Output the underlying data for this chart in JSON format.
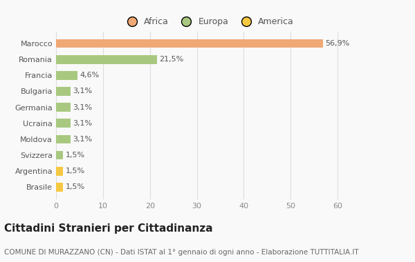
{
  "categories": [
    "Brasile",
    "Argentina",
    "Svizzera",
    "Moldova",
    "Ucraina",
    "Germania",
    "Bulgaria",
    "Francia",
    "Romania",
    "Marocco"
  ],
  "values": [
    1.5,
    1.5,
    1.5,
    3.1,
    3.1,
    3.1,
    3.1,
    4.6,
    21.5,
    56.9
  ],
  "labels": [
    "1,5%",
    "1,5%",
    "1,5%",
    "3,1%",
    "3,1%",
    "3,1%",
    "3,1%",
    "4,6%",
    "21,5%",
    "56,9%"
  ],
  "colors": [
    "#f5c842",
    "#f5c842",
    "#a8c880",
    "#a8c880",
    "#a8c880",
    "#a8c880",
    "#a8c880",
    "#a8c880",
    "#a8c880",
    "#f0a875"
  ],
  "legend_labels": [
    "Africa",
    "Europa",
    "America"
  ],
  "legend_colors": [
    "#f0a875",
    "#a8c880",
    "#f5c842"
  ],
  "title": "Cittadini Stranieri per Cittadinanza",
  "subtitle": "COMUNE DI MURAZZANO (CN) - Dati ISTAT al 1° gennaio di ogni anno - Elaborazione TUTTITALIA.IT",
  "xlim": [
    0,
    65
  ],
  "xticks": [
    0,
    10,
    20,
    30,
    40,
    50,
    60
  ],
  "bg_color": "#f9f9f9",
  "bar_height": 0.55,
  "title_fontsize": 11,
  "subtitle_fontsize": 7.5,
  "label_fontsize": 8,
  "tick_fontsize": 8,
  "legend_fontsize": 9
}
